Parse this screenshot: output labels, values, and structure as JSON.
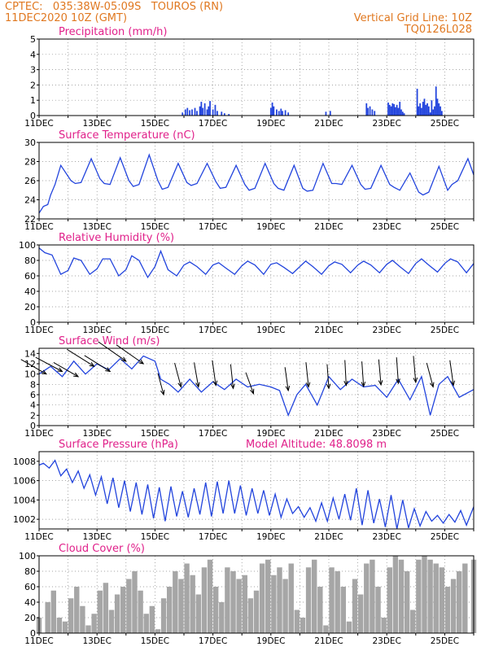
{
  "header": {
    "left_line1": "CPTEC:   035:38W-05:09S   TOUROS (RN)",
    "left_line2": "11DEC2020 10Z (GMT)",
    "right_line1": "Vertical Grid Line: 10Z",
    "right_line2": "TQ0126L028"
  },
  "colors": {
    "header": "#e07820",
    "title": "#e0208a",
    "series": "#2244dd",
    "cloud": "#a6a6a6",
    "wind_barb": "#000000",
    "grid": "#888888"
  },
  "chart_data": [
    {
      "id": "precip",
      "type": "bar",
      "title": "Precipitation (mm/h)",
      "ylim": [
        0,
        5
      ],
      "yticks": [
        0,
        1,
        2,
        3,
        4,
        5
      ],
      "xticks": [
        "11DEC",
        "13DEC",
        "15DEC",
        "17DEC",
        "19DEC",
        "21DEC",
        "23DEC",
        "25DEC"
      ],
      "x_unit": "days since 11DEC 00Z",
      "x": [
        4.95,
        5.05,
        5.12,
        5.2,
        5.28,
        5.38,
        5.45,
        5.55,
        5.6,
        5.65,
        5.72,
        5.8,
        5.85,
        5.9,
        6.0,
        6.08,
        6.15,
        6.3,
        6.4,
        6.55,
        8.0,
        8.05,
        8.1,
        8.2,
        8.28,
        8.35,
        8.4,
        8.5,
        8.6,
        9.9,
        10.05,
        11.3,
        11.35,
        11.42,
        11.5,
        11.58,
        12.05,
        12.1,
        12.15,
        12.2,
        12.25,
        12.3,
        12.35,
        12.4,
        12.45,
        12.5,
        12.55,
        12.6,
        13.05,
        13.1,
        13.15,
        13.2,
        13.25,
        13.3,
        13.35,
        13.4,
        13.45,
        13.5,
        13.55,
        13.6,
        13.65,
        13.7,
        13.75,
        13.8,
        13.85,
        13.9
      ],
      "values": [
        0.2,
        0.4,
        0.5,
        0.35,
        0.4,
        0.5,
        0.3,
        0.6,
        0.9,
        0.5,
        0.8,
        0.4,
        0.6,
        0.95,
        0.4,
        0.7,
        0.3,
        0.25,
        0.15,
        0.1,
        0.5,
        0.85,
        0.6,
        0.4,
        0.3,
        0.45,
        0.3,
        0.35,
        0.2,
        0.25,
        0.3,
        0.8,
        0.5,
        0.6,
        0.4,
        0.3,
        0.85,
        0.7,
        0.6,
        0.8,
        0.75,
        0.55,
        0.7,
        0.5,
        0.9,
        0.4,
        0.25,
        0.15,
        1.75,
        0.6,
        0.8,
        0.5,
        0.9,
        1.1,
        0.7,
        0.8,
        0.6,
        0.2,
        1.0,
        0.4,
        0.6,
        1.9,
        1.1,
        0.8,
        0.6,
        0.3
      ]
    },
    {
      "id": "temp",
      "type": "line",
      "title": "Surface Temperature (nC)",
      "ylim": [
        22,
        30
      ],
      "yticks": [
        22,
        24,
        26,
        28,
        30
      ],
      "xticks": [
        "11DEC",
        "13DEC",
        "15DEC",
        "17DEC",
        "19DEC",
        "21DEC",
        "23DEC",
        "25DEC"
      ],
      "x_unit": "days since 11DEC 00Z",
      "x": [
        0.0,
        0.15,
        0.3,
        0.4,
        0.55,
        0.75,
        1.1,
        1.25,
        1.45,
        1.8,
        2.1,
        2.25,
        2.45,
        2.8,
        3.1,
        3.25,
        3.45,
        3.8,
        4.1,
        4.25,
        4.45,
        4.8,
        5.1,
        5.25,
        5.45,
        5.8,
        6.1,
        6.25,
        6.45,
        6.8,
        7.1,
        7.25,
        7.45,
        7.8,
        8.1,
        8.25,
        8.45,
        8.8,
        9.1,
        9.25,
        9.45,
        9.8,
        10.1,
        10.25,
        10.45,
        10.8,
        11.1,
        11.25,
        11.45,
        11.8,
        12.1,
        12.25,
        12.45,
        12.8,
        13.1,
        13.25,
        13.45,
        13.8,
        14.1,
        14.25,
        14.45,
        14.8,
        15.0
      ],
      "y": [
        22.6,
        23.3,
        23.5,
        24.5,
        25.6,
        27.6,
        26.0,
        25.7,
        25.8,
        28.3,
        26.2,
        25.7,
        25.6,
        28.4,
        26.0,
        25.4,
        25.6,
        28.7,
        26.0,
        25.1,
        25.3,
        27.8,
        25.8,
        25.5,
        25.7,
        27.8,
        25.9,
        25.2,
        25.3,
        27.6,
        25.6,
        25.0,
        25.2,
        27.8,
        25.7,
        25.2,
        25.0,
        27.6,
        25.2,
        24.9,
        25.0,
        27.8,
        25.7,
        25.7,
        25.6,
        27.6,
        25.6,
        25.1,
        25.2,
        27.6,
        25.6,
        25.3,
        25.0,
        26.8,
        24.8,
        24.5,
        24.8,
        27.5,
        25.0,
        25.6,
        26.0,
        28.3,
        26.6
      ]
    },
    {
      "id": "rh",
      "type": "line",
      "title": "Relative Humidity (%)",
      "ylim": [
        0,
        100
      ],
      "yticks": [
        0,
        20,
        40,
        60,
        80,
        100
      ],
      "xticks": [
        "11DEC",
        "13DEC",
        "15DEC",
        "17DEC",
        "19DEC",
        "21DEC",
        "23DEC",
        "25DEC"
      ],
      "x_unit": "days since 11DEC 00Z",
      "x": [
        0.0,
        0.2,
        0.45,
        0.75,
        1.0,
        1.2,
        1.45,
        1.75,
        2.0,
        2.2,
        2.45,
        2.75,
        3.0,
        3.2,
        3.45,
        3.75,
        4.0,
        4.2,
        4.45,
        4.75,
        5.0,
        5.2,
        5.45,
        5.75,
        6.0,
        6.2,
        6.45,
        6.75,
        7.0,
        7.2,
        7.45,
        7.75,
        8.0,
        8.2,
        8.45,
        8.75,
        9.0,
        9.2,
        9.45,
        9.75,
        10.0,
        10.2,
        10.45,
        10.75,
        11.0,
        11.2,
        11.45,
        11.75,
        12.0,
        12.2,
        12.45,
        12.75,
        13.0,
        13.2,
        13.45,
        13.75,
        14.0,
        14.2,
        14.45,
        14.75,
        15.0
      ],
      "y": [
        96,
        90,
        87,
        62,
        67,
        83,
        80,
        62,
        69,
        82,
        82,
        60,
        68,
        86,
        80,
        58,
        72,
        92,
        68,
        60,
        74,
        78,
        72,
        62,
        74,
        77,
        70,
        62,
        73,
        79,
        74,
        62,
        75,
        77,
        71,
        63,
        72,
        79,
        72,
        62,
        73,
        78,
        75,
        64,
        74,
        79,
        74,
        64,
        75,
        80,
        72,
        63,
        76,
        82,
        74,
        65,
        76,
        82,
        78,
        64,
        76
      ]
    },
    {
      "id": "wind",
      "type": "line",
      "title": "Surface Wind (m/s)",
      "ylim": [
        0,
        15
      ],
      "yticks": [
        0,
        2,
        4,
        6,
        8,
        10,
        12,
        14
      ],
      "xticks": [
        "11DEC",
        "13DEC",
        "15DEC",
        "17DEC",
        "19DEC",
        "21DEC",
        "23DEC",
        "25DEC"
      ],
      "x_unit": "days since 11DEC 00Z",
      "x": [
        0.0,
        0.4,
        0.8,
        1.2,
        1.6,
        2.0,
        2.4,
        2.8,
        3.2,
        3.6,
        4.0,
        4.2,
        4.5,
        4.8,
        5.2,
        5.6,
        6.0,
        6.4,
        6.8,
        7.2,
        7.6,
        8.0,
        8.3,
        8.6,
        8.9,
        9.2,
        9.6,
        10.0,
        10.4,
        10.8,
        11.2,
        11.6,
        12.0,
        12.4,
        12.8,
        13.2,
        13.5,
        13.8,
        14.1,
        14.5,
        15.0
      ],
      "y": [
        10,
        11.5,
        9.5,
        12.5,
        10.0,
        12.0,
        10.8,
        13.0,
        11.0,
        13.5,
        12.5,
        9.0,
        8.0,
        6.5,
        9.0,
        6.5,
        8.5,
        7.0,
        9.0,
        7.5,
        8.0,
        7.5,
        6.8,
        2.0,
        6.0,
        8.0,
        4.0,
        9.5,
        7.0,
        9.0,
        7.5,
        7.8,
        5.5,
        9.0,
        5.0,
        9.5,
        2.0,
        8.0,
        9.5,
        5.5,
        7.0
      ],
      "barbs_x": [
        0.25,
        0.8,
        1.35,
        1.9,
        2.45,
        3.0,
        3.6,
        4.3,
        4.9,
        5.5,
        6.1,
        6.7,
        7.4,
        8.6,
        9.3,
        10.0,
        10.6,
        11.2,
        11.8,
        12.4,
        13.0,
        13.6,
        14.3
      ],
      "barbs_speed": [
        10.0,
        10.5,
        9.5,
        11.5,
        10.5,
        12.5,
        12.0,
        6.0,
        7.5,
        7.5,
        7.8,
        7.2,
        6.2,
        6.8,
        7.5,
        7.2,
        7.8,
        7.6,
        7.9,
        8.2,
        8.4,
        7.5,
        7.8
      ],
      "barbs_dir_deg": [
        150,
        152,
        150,
        148,
        148,
        145,
        145,
        105,
        105,
        100,
        98,
        96,
        110,
        98,
        96,
        94,
        93,
        94,
        95,
        94,
        95,
        105,
        98
      ]
    },
    {
      "id": "press",
      "type": "line",
      "title": "Surface Pressure (hPa)",
      "annotation": "Model Altitude: 48.8098  m",
      "ylim": [
        1001,
        1009
      ],
      "yticks": [
        1002,
        1004,
        1006,
        1008
      ],
      "xticks": [
        "11DEC",
        "13DEC",
        "15DEC",
        "17DEC",
        "19DEC",
        "21DEC",
        "23DEC",
        "25DEC"
      ],
      "x_unit": "days since 11DEC 00Z",
      "x": [
        0.0,
        0.15,
        0.35,
        0.55,
        0.75,
        0.95,
        1.15,
        1.35,
        1.55,
        1.75,
        1.95,
        2.15,
        2.35,
        2.55,
        2.75,
        2.95,
        3.15,
        3.35,
        3.55,
        3.75,
        3.95,
        4.15,
        4.35,
        4.55,
        4.75,
        4.95,
        5.15,
        5.35,
        5.55,
        5.75,
        5.95,
        6.15,
        6.35,
        6.55,
        6.75,
        6.95,
        7.15,
        7.35,
        7.55,
        7.75,
        7.95,
        8.15,
        8.35,
        8.55,
        8.75,
        8.95,
        9.15,
        9.35,
        9.55,
        9.75,
        9.95,
        10.15,
        10.35,
        10.55,
        10.75,
        10.95,
        11.15,
        11.35,
        11.55,
        11.75,
        11.95,
        12.15,
        12.35,
        12.55,
        12.75,
        12.95,
        13.15,
        13.35,
        13.55,
        13.75,
        13.95,
        14.15,
        14.35,
        14.55,
        14.75,
        15.0
      ],
      "y": [
        1007.6,
        1007.8,
        1007.3,
        1008.1,
        1006.5,
        1007.2,
        1005.8,
        1007.0,
        1005.2,
        1006.6,
        1004.5,
        1006.4,
        1003.6,
        1006.3,
        1003.2,
        1006.0,
        1002.8,
        1005.8,
        1002.5,
        1005.6,
        1002.1,
        1005.3,
        1001.8,
        1005.4,
        1002.3,
        1004.9,
        1002.2,
        1005.2,
        1002.5,
        1005.8,
        1002.3,
        1005.9,
        1002.6,
        1006.0,
        1002.6,
        1005.5,
        1002.4,
        1005.2,
        1002.6,
        1005.0,
        1002.4,
        1004.6,
        1002.2,
        1004.1,
        1002.6,
        1003.3,
        1002.2,
        1003.2,
        1001.8,
        1003.7,
        1001.8,
        1004.2,
        1002.0,
        1004.6,
        1001.9,
        1005.2,
        1001.4,
        1005.0,
        1001.6,
        1004.1,
        1001.2,
        1004.5,
        1000.9,
        1004.0,
        1001.1,
        1003.1,
        1001.3,
        1002.8,
        1001.8,
        1002.4,
        1001.6,
        1002.5,
        1001.7,
        1002.9,
        1001.4,
        1003.3
      ]
    },
    {
      "id": "cloud",
      "type": "area",
      "title": "Cloud Cover (%)",
      "ylim": [
        0,
        100
      ],
      "yticks": [
        0,
        20,
        40,
        60,
        80,
        100
      ],
      "xticks": [
        "11DEC",
        "13DEC",
        "15DEC",
        "17DEC",
        "19DEC",
        "21DEC",
        "23DEC",
        "25DEC"
      ],
      "x_unit": "days since 11DEC 00Z",
      "x": [
        0.0,
        0.3,
        0.5,
        0.7,
        0.9,
        1.1,
        1.3,
        1.5,
        1.7,
        1.9,
        2.1,
        2.3,
        2.5,
        2.7,
        2.9,
        3.1,
        3.3,
        3.5,
        3.7,
        3.9,
        4.1,
        4.3,
        4.5,
        4.7,
        4.9,
        5.1,
        5.3,
        5.5,
        5.7,
        5.9,
        6.1,
        6.3,
        6.5,
        6.7,
        6.9,
        7.1,
        7.3,
        7.5,
        7.7,
        7.9,
        8.1,
        8.3,
        8.5,
        8.7,
        8.9,
        9.1,
        9.3,
        9.5,
        9.7,
        9.9,
        10.1,
        10.3,
        10.5,
        10.7,
        10.9,
        11.1,
        11.3,
        11.5,
        11.7,
        11.9,
        12.1,
        12.3,
        12.5,
        12.7,
        12.9,
        13.1,
        13.3,
        13.5,
        13.7,
        13.9,
        14.1,
        14.3,
        14.5,
        14.7,
        15.0
      ],
      "y": [
        20,
        40,
        55,
        20,
        15,
        45,
        60,
        35,
        10,
        25,
        55,
        65,
        30,
        50,
        60,
        70,
        80,
        55,
        25,
        35,
        5,
        45,
        60,
        80,
        70,
        90,
        75,
        50,
        85,
        95,
        60,
        40,
        85,
        80,
        70,
        75,
        45,
        55,
        90,
        95,
        75,
        85,
        70,
        90,
        30,
        20,
        85,
        95,
        60,
        10,
        85,
        80,
        60,
        15,
        70,
        50,
        90,
        95,
        60,
        20,
        85,
        100,
        95,
        80,
        30,
        95,
        100,
        95,
        90,
        85,
        60,
        70,
        80,
        90,
        95
      ]
    }
  ]
}
